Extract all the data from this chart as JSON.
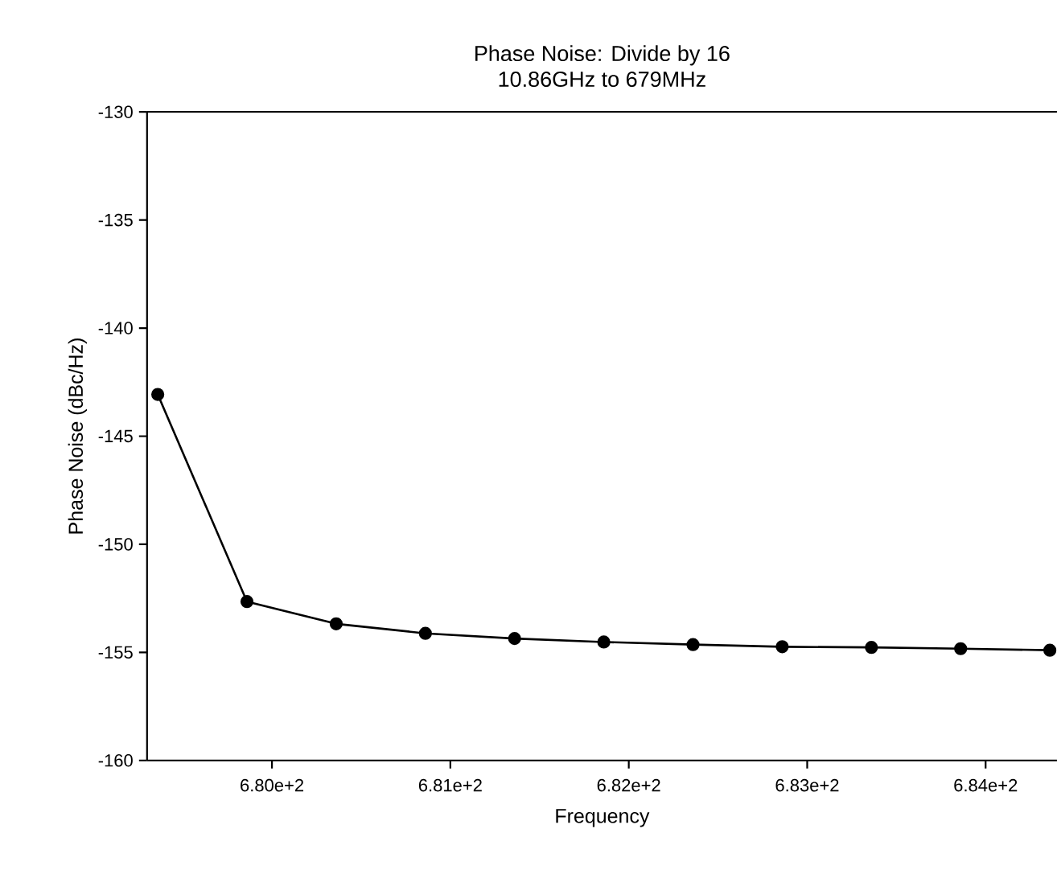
{
  "chart_data": {
    "type": "line",
    "title": "Phase Noise: Divide by 16",
    "subtitle": "10.86GHz to 679MHz",
    "xlabel": "Frequency",
    "ylabel": "Phase Noise (dBc/Hz)",
    "x": [
      679.36,
      679.86,
      680.36,
      680.86,
      681.36,
      681.86,
      682.36,
      682.86,
      683.36,
      683.86,
      684.36
    ],
    "values": [
      -143.07,
      -152.65,
      -153.68,
      -154.12,
      -154.36,
      -154.52,
      -154.64,
      -154.74,
      -154.77,
      -154.83,
      -154.9
    ],
    "color": "#000000",
    "marker": "circle",
    "line_style": "solid",
    "xlim": [
      679.3,
      684.4
    ],
    "ylim": [
      -160,
      -130
    ],
    "xticks": [
      {
        "value": 680,
        "label": "6.80e+2"
      },
      {
        "value": 681,
        "label": "6.81e+2"
      },
      {
        "value": 682,
        "label": "6.82e+2"
      },
      {
        "value": 683,
        "label": "6.83e+2"
      },
      {
        "value": 684,
        "label": "6.84e+2"
      }
    ],
    "yticks": [
      -160,
      -155,
      -150,
      -145,
      -140,
      -135,
      -130
    ]
  }
}
